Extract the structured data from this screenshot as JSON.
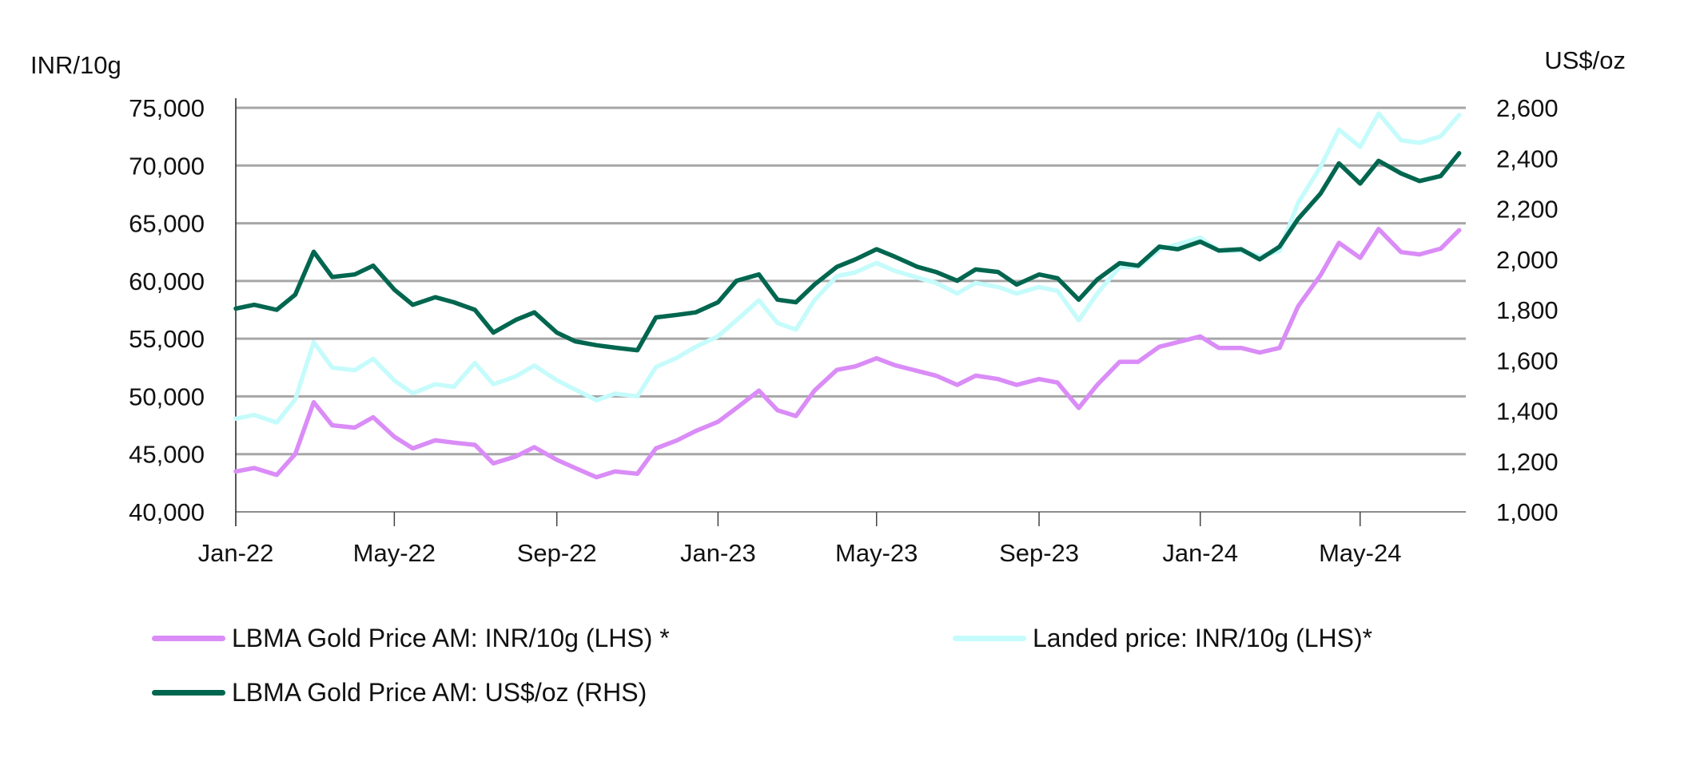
{
  "chart_data": {
    "type": "line",
    "title": "",
    "ylabel_left": "INR/10g",
    "ylabel_right": "US$/oz",
    "ylim_left": [
      40000,
      75000
    ],
    "ylim_right": [
      1000,
      2600
    ],
    "yticks_left": [
      "40,000",
      "45,000",
      "50,000",
      "55,000",
      "60,000",
      "65,000",
      "70,000",
      "75,000"
    ],
    "yticks_right": [
      "1,000",
      "1,200",
      "1,400",
      "1,600",
      "1,800",
      "2,000",
      "2,200",
      "2,400",
      "2,600"
    ],
    "xticks": [
      "Jan-22",
      "May-22",
      "Sep-22",
      "Jan-23",
      "May-23",
      "Sep-23",
      "Jan-24",
      "May-24"
    ],
    "xtick_dates": [
      "2022-01-01",
      "2022-05-01",
      "2022-09-01",
      "2023-01-01",
      "2023-05-01",
      "2023-09-01",
      "2024-01-01",
      "2024-05-01"
    ],
    "xlim": [
      "2022-01-01",
      "2024-07-20"
    ],
    "grid": "horizontal",
    "legend_position": "bottom",
    "x": [
      "2022-01-01",
      "2022-01-15",
      "2022-02-01",
      "2022-02-15",
      "2022-03-01",
      "2022-03-15",
      "2022-04-01",
      "2022-04-15",
      "2022-05-01",
      "2022-05-15",
      "2022-06-01",
      "2022-06-15",
      "2022-07-01",
      "2022-07-15",
      "2022-08-01",
      "2022-08-15",
      "2022-09-01",
      "2022-09-15",
      "2022-10-01",
      "2022-10-15",
      "2022-11-01",
      "2022-11-15",
      "2022-12-01",
      "2022-12-15",
      "2023-01-01",
      "2023-01-15",
      "2023-02-01",
      "2023-02-15",
      "2023-03-01",
      "2023-03-15",
      "2023-04-01",
      "2023-04-15",
      "2023-05-01",
      "2023-05-15",
      "2023-06-01",
      "2023-06-15",
      "2023-07-01",
      "2023-07-15",
      "2023-08-01",
      "2023-08-15",
      "2023-09-01",
      "2023-09-15",
      "2023-10-01",
      "2023-10-15",
      "2023-11-01",
      "2023-11-15",
      "2023-12-01",
      "2023-12-15",
      "2024-01-01",
      "2024-01-15",
      "2024-02-01",
      "2024-02-15",
      "2024-03-01",
      "2024-03-15",
      "2024-04-01",
      "2024-04-15",
      "2024-05-01",
      "2024-05-15",
      "2024-06-01",
      "2024-06-15",
      "2024-07-01",
      "2024-07-15"
    ],
    "series": [
      {
        "name": "LBMA Gold Price AM: INR/10g (LHS) *",
        "axis": "left",
        "color": "#da8cf7",
        "values": [
          43500,
          43800,
          43200,
          45000,
          49500,
          47500,
          47300,
          48200,
          46500,
          45500,
          46200,
          46000,
          45800,
          44200,
          44800,
          45600,
          44500,
          43800,
          43000,
          43500,
          43300,
          45500,
          46200,
          47000,
          47800,
          49000,
          50500,
          48800,
          48300,
          50500,
          52300,
          52600,
          53300,
          52700,
          52200,
          51800,
          51000,
          51800,
          51500,
          51000,
          51500,
          51200,
          49000,
          51000,
          53000,
          53000,
          54300,
          54700,
          55200,
          54200,
          54200,
          53800,
          54200,
          57800,
          60500,
          63300,
          62000,
          64500,
          62500,
          62300,
          62800,
          64400
        ]
      },
      {
        "name": "Landed price: INR/10g (LHS)*",
        "axis": "left",
        "color": "#c6fbfb",
        "values": [
          48070,
          48400,
          47740,
          49730,
          54700,
          52490,
          52270,
          53260,
          51380,
          50280,
          51050,
          50830,
          52900,
          51050,
          51740,
          52670,
          51400,
          50590,
          49670,
          50240,
          50010,
          52550,
          53360,
          54290,
          55210,
          56600,
          58330,
          56360,
          55790,
          58330,
          60410,
          60750,
          61560,
          60870,
          60290,
          59830,
          58910,
          59830,
          59480,
          58910,
          59480,
          59140,
          56600,
          58910,
          61220,
          61220,
          62720,
          63180,
          63760,
          62600,
          62600,
          62140,
          62600,
          66760,
          69880,
          73110,
          71610,
          74500,
          72190,
          71960,
          72530,
          74380
        ]
      },
      {
        "name": "LBMA Gold Price AM: US$/oz (RHS)",
        "axis": "right",
        "color": "#00664f",
        "values": [
          1805,
          1820,
          1800,
          1860,
          2030,
          1930,
          1940,
          1975,
          1880,
          1820,
          1850,
          1830,
          1800,
          1710,
          1760,
          1790,
          1710,
          1675,
          1660,
          1650,
          1640,
          1770,
          1780,
          1790,
          1830,
          1915,
          1940,
          1840,
          1830,
          1900,
          1970,
          2000,
          2040,
          2010,
          1970,
          1950,
          1915,
          1960,
          1950,
          1900,
          1940,
          1925,
          1840,
          1920,
          1985,
          1975,
          2050,
          2040,
          2070,
          2035,
          2040,
          2000,
          2050,
          2160,
          2260,
          2380,
          2300,
          2390,
          2340,
          2310,
          2330,
          2420
        ]
      }
    ]
  },
  "legend": {
    "items": [
      {
        "label": "LBMA Gold Price AM: INR/10g (LHS) *",
        "color": "#da8cf7"
      },
      {
        "label": "Landed price: INR/10g (LHS)*",
        "color": "#c6fbfb"
      },
      {
        "label": "LBMA Gold Price AM: US$/oz (RHS)",
        "color": "#00664f"
      }
    ]
  }
}
